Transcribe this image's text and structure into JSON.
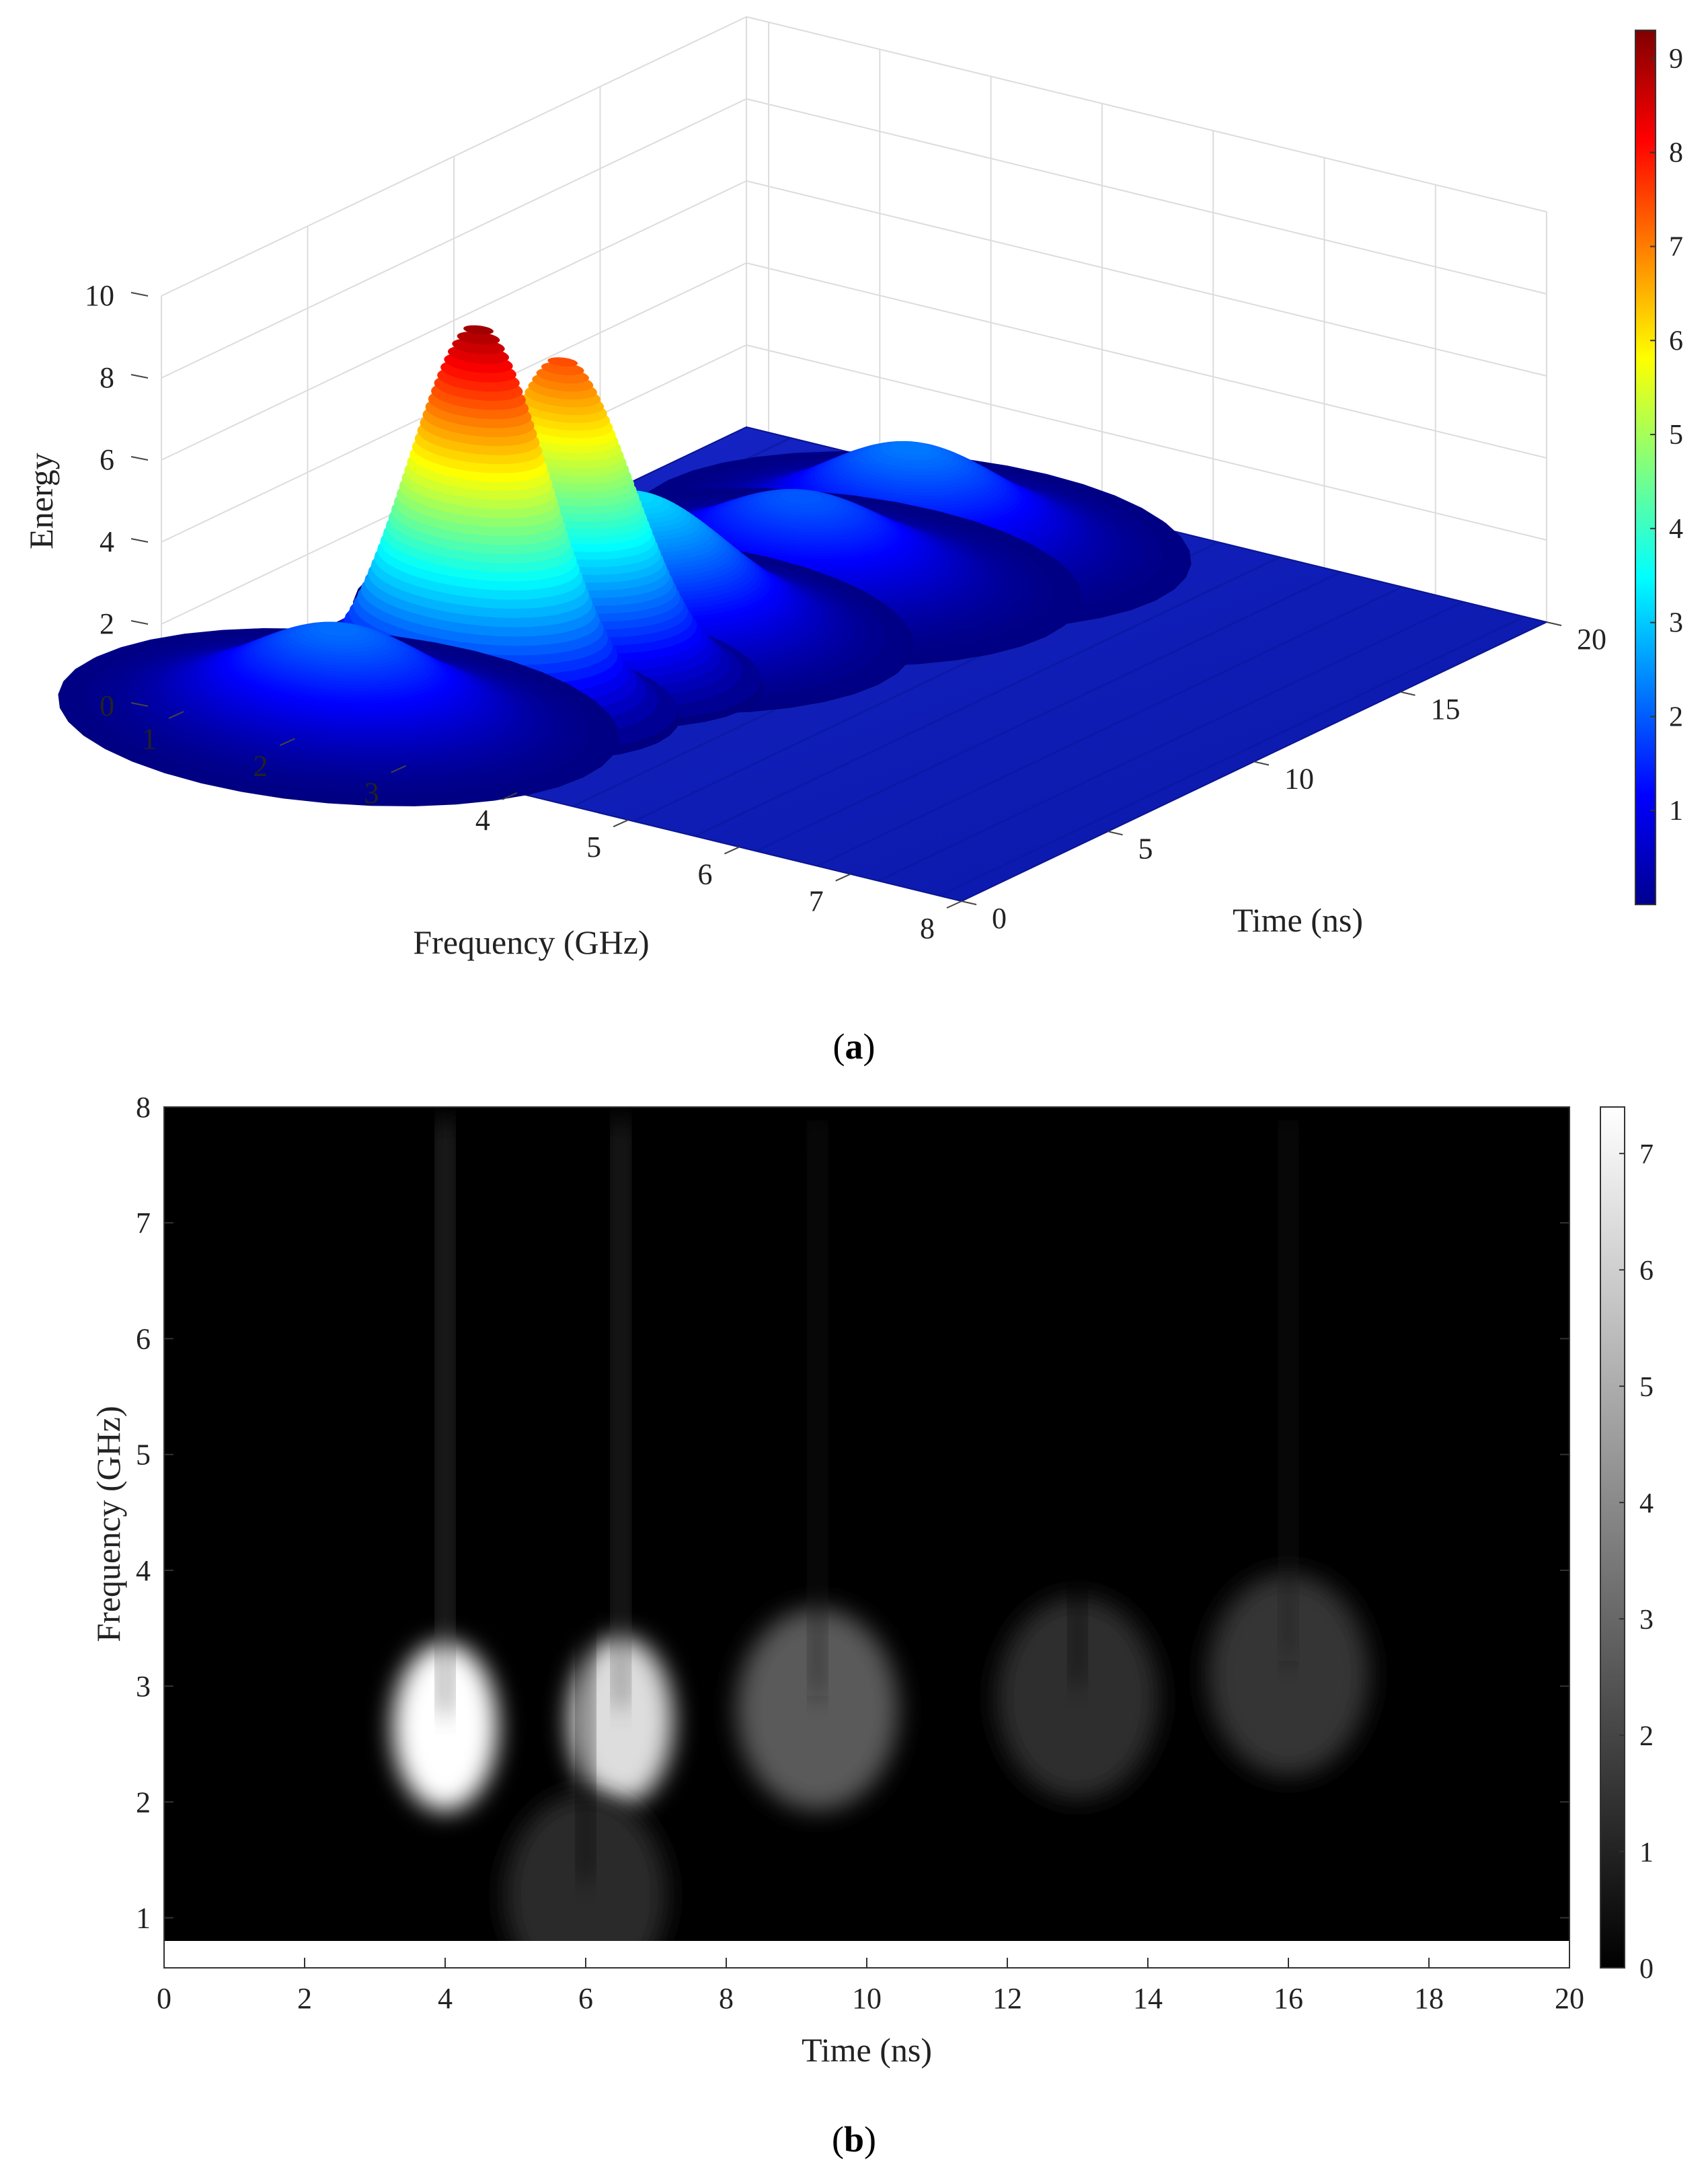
{
  "figure": {
    "panel_a_label": "a",
    "panel_b_label": "b"
  },
  "chart_data": [
    {
      "type": "surface3d",
      "panel": "a",
      "xlabel": "Frequency (GHz)",
      "ylabel": "Time (ns)",
      "zlabel": "Energy",
      "x_ticks": [
        "1",
        "2",
        "3",
        "4",
        "5",
        "6",
        "7",
        "8"
      ],
      "y_ticks": [
        "0",
        "5",
        "10",
        "15",
        "20"
      ],
      "z_ticks": [
        "0",
        "2",
        "4",
        "6",
        "8",
        "10"
      ],
      "xlim": [
        0.8,
        8
      ],
      "ylim": [
        0,
        20
      ],
      "zlim": [
        0,
        10
      ],
      "colormap": "jet",
      "colorbar_ticks": [
        "1",
        "2",
        "3",
        "4",
        "5",
        "6",
        "7",
        "8",
        "9"
      ],
      "colorbar_range": [
        0,
        9.3
      ],
      "grid": true,
      "peaks": [
        {
          "frequency_ghz": 2.6,
          "time_ns": 4.0,
          "energy": 9.2
        },
        {
          "frequency_ghz": 2.7,
          "time_ns": 6.5,
          "energy": 7.6
        },
        {
          "frequency_ghz": 2.0,
          "time_ns": 1.5,
          "energy": 2.2
        },
        {
          "frequency_ghz": 2.6,
          "time_ns": 9.3,
          "energy": 3.2
        },
        {
          "frequency_ghz": 3.0,
          "time_ns": 13.5,
          "energy": 2.0
        },
        {
          "frequency_ghz": 3.2,
          "time_ns": 16.5,
          "energy": 2.3
        }
      ]
    },
    {
      "type": "heatmap",
      "panel": "b",
      "xlabel": "Time (ns)",
      "ylabel": "Frequency (GHz)",
      "x_ticks": [
        "0",
        "2",
        "4",
        "6",
        "8",
        "10",
        "12",
        "14",
        "16",
        "18",
        "20"
      ],
      "y_ticks": [
        "1",
        "2",
        "3",
        "4",
        "5",
        "6",
        "7",
        "8"
      ],
      "xlim": [
        0,
        20
      ],
      "ylim": [
        0.8,
        8
      ],
      "colormap": "gray",
      "colorbar_ticks": [
        "0",
        "1",
        "2",
        "3",
        "4",
        "5",
        "6",
        "7"
      ],
      "colorbar_range": [
        0,
        7.4
      ],
      "blobs": [
        {
          "time_ns": 4.0,
          "frequency_ghz": 2.65,
          "value": 7.4
        },
        {
          "time_ns": 6.5,
          "frequency_ghz": 2.7,
          "value": 6.4
        },
        {
          "time_ns": 9.3,
          "frequency_ghz": 2.8,
          "value": 2.6
        },
        {
          "time_ns": 13.0,
          "frequency_ghz": 2.9,
          "value": 1.3
        },
        {
          "time_ns": 16.0,
          "frequency_ghz": 3.1,
          "value": 1.5
        },
        {
          "time_ns": 6.0,
          "frequency_ghz": 1.2,
          "value": 1.2
        }
      ]
    }
  ]
}
